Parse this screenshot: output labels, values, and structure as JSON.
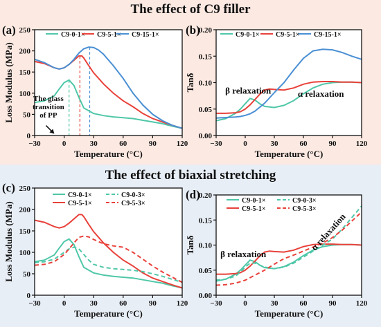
{
  "sections": [
    {
      "title": "The effect of C9 filler"
    },
    {
      "title": "The effect of biaxial stretching"
    }
  ],
  "colors": {
    "teal": "#4fc7a8",
    "red": "#e8413a",
    "blue": "#4a8fd4"
  },
  "chart_data": [
    {
      "panel_label": "(a)",
      "type": "line",
      "xlabel": "Temperature (°C)",
      "ylabel": "Loss Modulus (MPa)",
      "xlim": [
        -30,
        120
      ],
      "ylim": [
        0,
        250
      ],
      "xticks": [
        "-30",
        "0",
        "30",
        "60",
        "90",
        "120"
      ],
      "yticks": [
        "0",
        "50",
        "100",
        "150",
        "200",
        "250"
      ],
      "legend_position": "top",
      "series": [
        {
          "name": "C9-0-1×",
          "color": "#4fc7a8",
          "dash": false,
          "x": [
            -30,
            -20,
            -10,
            -5,
            0,
            5,
            10,
            15,
            20,
            30,
            40,
            50,
            60,
            70,
            80,
            90,
            100,
            110,
            120
          ],
          "y": [
            78,
            82,
            94,
            110,
            125,
            131,
            118,
            90,
            65,
            52,
            47,
            44,
            42,
            40,
            36,
            32,
            28,
            22,
            17
          ]
        },
        {
          "name": "C9-5-1×",
          "color": "#e8413a",
          "dash": false,
          "x": [
            -30,
            -20,
            -10,
            -5,
            0,
            5,
            10,
            15,
            18,
            20,
            25,
            30,
            40,
            50,
            60,
            70,
            80,
            90,
            100,
            110,
            120
          ],
          "y": [
            175,
            170,
            160,
            157,
            160,
            168,
            178,
            188,
            188,
            183,
            165,
            148,
            122,
            100,
            82,
            68,
            52,
            40,
            32,
            24,
            17
          ]
        },
        {
          "name": "C9-15-1×",
          "color": "#4a8fd4",
          "dash": false,
          "x": [
            -30,
            -20,
            -10,
            -5,
            0,
            5,
            10,
            15,
            20,
            25,
            30,
            35,
            40,
            50,
            60,
            70,
            80,
            90,
            100,
            110,
            120
          ],
          "y": [
            180,
            172,
            160,
            157,
            160,
            168,
            180,
            195,
            205,
            209,
            208,
            202,
            192,
            165,
            135,
            100,
            72,
            50,
            35,
            24,
            17
          ]
        }
      ],
      "annotations": [
        {
          "text": "The glass transition of PP",
          "lines": [
            "The glass",
            "transition",
            "of PP"
          ],
          "x": -16,
          "y": 82
        },
        {
          "text": "arrow",
          "x": -10,
          "y": 4
        }
      ],
      "vlines": [
        {
          "x": 5,
          "color": "#4fc7a8"
        },
        {
          "x": 16,
          "color": "#e8413a"
        },
        {
          "x": 26,
          "color": "#4a8fd4"
        }
      ]
    },
    {
      "panel_label": "(b)",
      "type": "line",
      "xlabel": "Temperature (°C)",
      "ylabel": "Tanδ",
      "xlim": [
        -30,
        120
      ],
      "ylim": [
        0,
        0.2
      ],
      "xticks": [
        "-30",
        "0",
        "30",
        "60",
        "90",
        "120"
      ],
      "yticks": [
        "0.00",
        "0.05",
        "0.10",
        "0.15",
        "0.20"
      ],
      "legend_position": "top",
      "series": [
        {
          "name": "C9-0-1×",
          "color": "#4fc7a8",
          "dash": false,
          "x": [
            -30,
            -20,
            -10,
            -5,
            0,
            5,
            10,
            15,
            20,
            30,
            40,
            50,
            60,
            70,
            80,
            90,
            100,
            110,
            120
          ],
          "y": [
            0.028,
            0.032,
            0.042,
            0.05,
            0.06,
            0.07,
            0.067,
            0.06,
            0.055,
            0.053,
            0.057,
            0.066,
            0.079,
            0.09,
            0.097,
            0.1,
            0.101,
            0.101,
            0.1
          ]
        },
        {
          "name": "C9-5-1×",
          "color": "#e8413a",
          "dash": false,
          "x": [
            -30,
            -20,
            -10,
            -5,
            0,
            5,
            10,
            15,
            20,
            25,
            30,
            40,
            50,
            60,
            70,
            80,
            90,
            100,
            110,
            120
          ],
          "y": [
            0.042,
            0.042,
            0.043,
            0.045,
            0.05,
            0.058,
            0.068,
            0.078,
            0.086,
            0.088,
            0.087,
            0.086,
            0.09,
            0.097,
            0.101,
            0.102,
            0.102,
            0.101,
            0.101,
            0.1
          ]
        },
        {
          "name": "C9-15-1×",
          "color": "#4a8fd4",
          "dash": false,
          "x": [
            -30,
            -20,
            -10,
            -5,
            0,
            5,
            10,
            20,
            30,
            40,
            50,
            60,
            70,
            80,
            90,
            100,
            110,
            120
          ],
          "y": [
            0.033,
            0.034,
            0.035,
            0.036,
            0.038,
            0.041,
            0.046,
            0.061,
            0.081,
            0.1,
            0.124,
            0.146,
            0.16,
            0.163,
            0.162,
            0.157,
            0.15,
            0.144
          ]
        }
      ],
      "annotations": [
        {
          "text": "β relaxation",
          "x": 3,
          "y": 0.079
        },
        {
          "text": "α relaxation",
          "x": 78,
          "y": 0.073
        }
      ]
    },
    {
      "panel_label": "(c)",
      "type": "line",
      "xlabel": "Temperature (°C)",
      "ylabel": "Loss Modulus (MPa)",
      "xlim": [
        -30,
        120
      ],
      "ylim": [
        0,
        250
      ],
      "xticks": [
        "-30",
        "0",
        "30",
        "60",
        "90",
        "120"
      ],
      "yticks": [
        "0",
        "50",
        "100",
        "150",
        "200",
        "250"
      ],
      "legend_position": "top-right",
      "series": [
        {
          "name": "C9-0-1×",
          "color": "#4fc7a8",
          "dash": false,
          "x": [
            -30,
            -20,
            -10,
            -5,
            0,
            5,
            10,
            15,
            20,
            30,
            40,
            50,
            60,
            70,
            80,
            90,
            100,
            110,
            120
          ],
          "y": [
            78,
            82,
            94,
            110,
            125,
            131,
            118,
            90,
            65,
            52,
            47,
            44,
            42,
            40,
            36,
            32,
            28,
            22,
            17
          ]
        },
        {
          "name": "C9-5-1×",
          "color": "#e8413a",
          "dash": false,
          "x": [
            -30,
            -20,
            -10,
            -5,
            0,
            5,
            10,
            15,
            18,
            20,
            25,
            30,
            40,
            50,
            60,
            70,
            80,
            90,
            100,
            110,
            120
          ],
          "y": [
            175,
            170,
            160,
            157,
            160,
            168,
            178,
            188,
            188,
            183,
            165,
            148,
            122,
            100,
            82,
            68,
            52,
            40,
            32,
            24,
            17
          ]
        },
        {
          "name": "C9-0-3×",
          "color": "#4fc7a8",
          "dash": true,
          "x": [
            -30,
            -20,
            -10,
            0,
            5,
            10,
            15,
            20,
            25,
            30,
            40,
            50,
            60,
            70,
            80,
            90,
            100,
            110,
            120
          ],
          "y": [
            76,
            78,
            84,
            100,
            108,
            112,
            108,
            95,
            82,
            72,
            65,
            62,
            60,
            58,
            55,
            50,
            44,
            37,
            30
          ]
        },
        {
          "name": "C9-5-3×",
          "color": "#e8413a",
          "dash": true,
          "x": [
            -30,
            -20,
            -10,
            0,
            5,
            10,
            15,
            20,
            25,
            30,
            40,
            50,
            60,
            70,
            80,
            90,
            100,
            110,
            120
          ],
          "y": [
            70,
            72,
            78,
            95,
            108,
            122,
            135,
            138,
            136,
            130,
            120,
            115,
            112,
            100,
            84,
            68,
            54,
            42,
            30
          ]
        }
      ]
    },
    {
      "panel_label": "(d)",
      "type": "line",
      "xlabel": "Temperature (°C)",
      "ylabel": "Tanδ",
      "xlim": [
        -30,
        120
      ],
      "ylim": [
        0,
        0.2
      ],
      "xticks": [
        "-30",
        "0",
        "30",
        "60",
        "90",
        "120"
      ],
      "yticks": [
        "0.00",
        "0.05",
        "0.10",
        "0.15",
        "0.20"
      ],
      "legend_position": "top",
      "series": [
        {
          "name": "C9-0-1×",
          "color": "#4fc7a8",
          "dash": false,
          "x": [
            -30,
            -20,
            -10,
            -5,
            0,
            5,
            10,
            15,
            20,
            30,
            40,
            50,
            60,
            70,
            80,
            90,
            100,
            110,
            120
          ],
          "y": [
            0.028,
            0.032,
            0.042,
            0.05,
            0.06,
            0.07,
            0.067,
            0.06,
            0.055,
            0.053,
            0.057,
            0.066,
            0.079,
            0.09,
            0.097,
            0.1,
            0.101,
            0.101,
            0.1
          ]
        },
        {
          "name": "C9-5-1×",
          "color": "#e8413a",
          "dash": false,
          "x": [
            -30,
            -20,
            -10,
            -5,
            0,
            5,
            10,
            15,
            20,
            25,
            30,
            40,
            50,
            60,
            70,
            80,
            90,
            100,
            110,
            120
          ],
          "y": [
            0.042,
            0.042,
            0.043,
            0.045,
            0.05,
            0.058,
            0.068,
            0.078,
            0.086,
            0.088,
            0.087,
            0.086,
            0.09,
            0.097,
            0.101,
            0.102,
            0.102,
            0.101,
            0.101,
            0.1
          ]
        },
        {
          "name": "C9-0-3×",
          "color": "#4fc7a8",
          "dash": true,
          "x": [
            -30,
            -20,
            -10,
            -5,
            0,
            5,
            10,
            15,
            20,
            30,
            40,
            50,
            60,
            70,
            80,
            90,
            100,
            110,
            120
          ],
          "y": [
            0.03,
            0.032,
            0.038,
            0.046,
            0.056,
            0.064,
            0.064,
            0.06,
            0.056,
            0.053,
            0.056,
            0.064,
            0.076,
            0.088,
            0.1,
            0.112,
            0.132,
            0.155,
            0.178
          ]
        },
        {
          "name": "C9-5-3×",
          "color": "#e8413a",
          "dash": true,
          "x": [
            -30,
            -20,
            -10,
            0,
            10,
            20,
            30,
            40,
            50,
            60,
            70,
            80,
            90,
            100,
            110,
            120
          ],
          "y": [
            0.02,
            0.021,
            0.024,
            0.03,
            0.04,
            0.05,
            0.062,
            0.073,
            0.08,
            0.088,
            0.096,
            0.104,
            0.115,
            0.13,
            0.148,
            0.166
          ]
        }
      ],
      "annotations": [
        {
          "text": "β relaxation",
          "x": -2,
          "y": 0.076
        },
        {
          "text": "α relaxation",
          "x": 88,
          "y": 0.122,
          "rotate": -48
        }
      ]
    }
  ]
}
